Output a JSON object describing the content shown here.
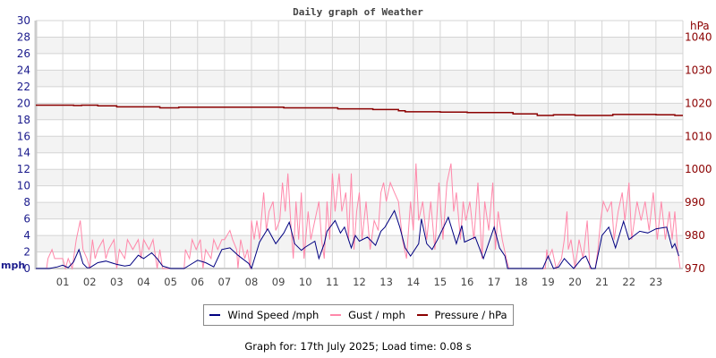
{
  "chart_data": {
    "type": "line",
    "title": "Daily graph of Weather",
    "x_unit": "hour",
    "xlim": [
      0,
      24
    ],
    "x_tick_labels": [
      "01",
      "02",
      "03",
      "04",
      "05",
      "06",
      "07",
      "08",
      "09",
      "10",
      "11",
      "12",
      "13",
      "14",
      "15",
      "16",
      "17",
      "18",
      "19",
      "20",
      "21",
      "22",
      "23"
    ],
    "left_axis": {
      "label": "mph",
      "ylim": [
        0,
        30
      ],
      "ticks": [
        0,
        2,
        4,
        6,
        8,
        10,
        12,
        14,
        16,
        18,
        20,
        22,
        24,
        26,
        28,
        30
      ]
    },
    "right_axis": {
      "label": "hPa",
      "ylim": [
        970,
        1045
      ],
      "ticks": [
        970,
        980,
        990,
        1000,
        1010,
        1020,
        1030,
        1040
      ]
    },
    "grid": true,
    "legend_position": "bottom",
    "series": [
      {
        "name": "Wind Speed /mph",
        "axis": "left",
        "color": "#000080",
        "points": [
          [
            0,
            0
          ],
          [
            0.5,
            0
          ],
          [
            0.8,
            0.2
          ],
          [
            1.0,
            0.4
          ],
          [
            1.2,
            0.1
          ],
          [
            1.4,
            0.8
          ],
          [
            1.6,
            2.3
          ],
          [
            1.75,
            0.6
          ],
          [
            1.9,
            0.1
          ],
          [
            2.0,
            0.1
          ],
          [
            2.3,
            0.7
          ],
          [
            2.6,
            0.9
          ],
          [
            3.0,
            0.5
          ],
          [
            3.3,
            0.3
          ],
          [
            3.5,
            0.4
          ],
          [
            3.8,
            1.6
          ],
          [
            4.0,
            1.2
          ],
          [
            4.3,
            1.9
          ],
          [
            4.5,
            1.2
          ],
          [
            4.7,
            0.3
          ],
          [
            5.0,
            0
          ],
          [
            5.5,
            0
          ],
          [
            5.8,
            0.6
          ],
          [
            6.0,
            1.0
          ],
          [
            6.3,
            0.7
          ],
          [
            6.6,
            0.2
          ],
          [
            6.9,
            2.3
          ],
          [
            7.2,
            2.5
          ],
          [
            7.5,
            1.6
          ],
          [
            7.9,
            0.6
          ],
          [
            8.0,
            0
          ],
          [
            8.3,
            3.2
          ],
          [
            8.6,
            4.8
          ],
          [
            8.9,
            3.0
          ],
          [
            9.2,
            4.3
          ],
          [
            9.4,
            5.6
          ],
          [
            9.6,
            3.0
          ],
          [
            9.85,
            2.2
          ],
          [
            10.0,
            2.6
          ],
          [
            10.35,
            3.3
          ],
          [
            10.5,
            1.2
          ],
          [
            10.7,
            3.0
          ],
          [
            10.8,
            4.5
          ],
          [
            11.1,
            5.8
          ],
          [
            11.3,
            4.3
          ],
          [
            11.45,
            5.0
          ],
          [
            11.6,
            3.5
          ],
          [
            11.7,
            2.5
          ],
          [
            11.85,
            4.0
          ],
          [
            12.0,
            3.3
          ],
          [
            12.3,
            3.8
          ],
          [
            12.6,
            2.8
          ],
          [
            12.8,
            4.5
          ],
          [
            12.95,
            5.0
          ],
          [
            13.3,
            7.0
          ],
          [
            13.5,
            5.0
          ],
          [
            13.7,
            2.5
          ],
          [
            13.9,
            1.5
          ],
          [
            14.2,
            3.0
          ],
          [
            14.3,
            6.0
          ],
          [
            14.5,
            3.0
          ],
          [
            14.7,
            2.3
          ],
          [
            14.9,
            3.5
          ],
          [
            15.3,
            6.2
          ],
          [
            15.6,
            3.0
          ],
          [
            15.8,
            5.2
          ],
          [
            15.9,
            3.2
          ],
          [
            16.3,
            3.8
          ],
          [
            16.6,
            1.2
          ],
          [
            17.0,
            5.0
          ],
          [
            17.2,
            2.5
          ],
          [
            17.4,
            1.5
          ],
          [
            17.5,
            0
          ],
          [
            18.8,
            0
          ],
          [
            19.0,
            1.5
          ],
          [
            19.2,
            0
          ],
          [
            19.4,
            0.2
          ],
          [
            19.6,
            1.2
          ],
          [
            19.8,
            0.5
          ],
          [
            19.95,
            0
          ],
          [
            20.25,
            1.2
          ],
          [
            20.4,
            1.5
          ],
          [
            20.6,
            0
          ],
          [
            20.75,
            0
          ],
          [
            21.0,
            4.0
          ],
          [
            21.25,
            5.0
          ],
          [
            21.5,
            2.5
          ],
          [
            21.8,
            5.7
          ],
          [
            22.0,
            3.5
          ],
          [
            22.4,
            4.5
          ],
          [
            22.7,
            4.3
          ],
          [
            23.0,
            4.8
          ],
          [
            23.4,
            5.0
          ],
          [
            23.6,
            2.5
          ],
          [
            23.7,
            3.0
          ],
          [
            23.85,
            1.5
          ]
        ]
      },
      {
        "name": "Gust / mph",
        "axis": "left",
        "color": "#ff88aa",
        "points": [
          [
            0,
            0
          ],
          [
            0.4,
            0
          ],
          [
            0.45,
            1.2
          ],
          [
            0.6,
            2.3
          ],
          [
            0.7,
            1.2
          ],
          [
            1.0,
            1.2
          ],
          [
            1.1,
            0
          ],
          [
            1.2,
            1.2
          ],
          [
            1.35,
            0
          ],
          [
            1.4,
            1.2
          ],
          [
            1.5,
            3.5
          ],
          [
            1.65,
            5.8
          ],
          [
            1.75,
            2.3
          ],
          [
            1.9,
            1.2
          ],
          [
            2.0,
            0
          ],
          [
            2.1,
            3.5
          ],
          [
            2.2,
            1.2
          ],
          [
            2.3,
            2.3
          ],
          [
            2.5,
            3.5
          ],
          [
            2.6,
            1.2
          ],
          [
            2.7,
            2.3
          ],
          [
            2.9,
            3.5
          ],
          [
            3.0,
            0
          ],
          [
            3.1,
            2.3
          ],
          [
            3.3,
            1.2
          ],
          [
            3.4,
            3.5
          ],
          [
            3.6,
            2.3
          ],
          [
            3.8,
            3.5
          ],
          [
            3.9,
            1.2
          ],
          [
            4.0,
            3.5
          ],
          [
            4.2,
            2.3
          ],
          [
            4.35,
            3.5
          ],
          [
            4.5,
            0
          ],
          [
            4.6,
            2.3
          ],
          [
            4.7,
            0
          ],
          [
            5.5,
            0
          ],
          [
            5.55,
            2.3
          ],
          [
            5.7,
            1.2
          ],
          [
            5.8,
            3.5
          ],
          [
            5.95,
            2.3
          ],
          [
            6.1,
            3.5
          ],
          [
            6.2,
            0
          ],
          [
            6.3,
            2.3
          ],
          [
            6.5,
            1.2
          ],
          [
            6.6,
            3.5
          ],
          [
            6.75,
            2.3
          ],
          [
            6.9,
            3.5
          ],
          [
            7.0,
            3.5
          ],
          [
            7.2,
            4.6
          ],
          [
            7.3,
            3.5
          ],
          [
            7.45,
            2.3
          ],
          [
            7.5,
            0
          ],
          [
            7.6,
            3.5
          ],
          [
            7.75,
            1.2
          ],
          [
            7.85,
            2.3
          ],
          [
            7.95,
            0
          ],
          [
            8.0,
            5.8
          ],
          [
            8.1,
            3.5
          ],
          [
            8.2,
            5.8
          ],
          [
            8.3,
            3.5
          ],
          [
            8.45,
            9.2
          ],
          [
            8.55,
            4.6
          ],
          [
            8.65,
            6.9
          ],
          [
            8.8,
            8.1
          ],
          [
            8.9,
            4.6
          ],
          [
            9.05,
            5.8
          ],
          [
            9.15,
            10.4
          ],
          [
            9.25,
            6.9
          ],
          [
            9.35,
            11.5
          ],
          [
            9.45,
            5.8
          ],
          [
            9.55,
            1.2
          ],
          [
            9.65,
            8.1
          ],
          [
            9.75,
            3.5
          ],
          [
            9.85,
            9.2
          ],
          [
            9.95,
            1.2
          ],
          [
            10.1,
            6.9
          ],
          [
            10.2,
            3.5
          ],
          [
            10.35,
            5.8
          ],
          [
            10.5,
            8.1
          ],
          [
            10.6,
            3.5
          ],
          [
            10.7,
            1.2
          ],
          [
            10.8,
            8.1
          ],
          [
            10.9,
            3.5
          ],
          [
            11.0,
            11.5
          ],
          [
            11.1,
            6.9
          ],
          [
            11.25,
            11.5
          ],
          [
            11.35,
            6.9
          ],
          [
            11.5,
            9.2
          ],
          [
            11.6,
            3.5
          ],
          [
            11.7,
            11.5
          ],
          [
            11.8,
            2.3
          ],
          [
            11.9,
            6.9
          ],
          [
            12.0,
            9.2
          ],
          [
            12.1,
            3.5
          ],
          [
            12.25,
            8.1
          ],
          [
            12.4,
            2.3
          ],
          [
            12.55,
            5.8
          ],
          [
            12.7,
            4.6
          ],
          [
            12.8,
            9.2
          ],
          [
            12.9,
            10.4
          ],
          [
            13.0,
            8.1
          ],
          [
            13.15,
            10.4
          ],
          [
            13.3,
            9.2
          ],
          [
            13.45,
            8.1
          ],
          [
            13.6,
            3.5
          ],
          [
            13.75,
            1.2
          ],
          [
            13.9,
            8.1
          ],
          [
            14.0,
            4.6
          ],
          [
            14.1,
            12.7
          ],
          [
            14.2,
            5.8
          ],
          [
            14.35,
            8.1
          ],
          [
            14.5,
            3.5
          ],
          [
            14.65,
            8.1
          ],
          [
            14.8,
            2.3
          ],
          [
            14.95,
            10.4
          ],
          [
            15.1,
            3.5
          ],
          [
            15.25,
            10.4
          ],
          [
            15.4,
            12.7
          ],
          [
            15.5,
            6.9
          ],
          [
            15.6,
            9.2
          ],
          [
            15.75,
            3.5
          ],
          [
            15.85,
            8.1
          ],
          [
            15.95,
            5.8
          ],
          [
            16.1,
            8.1
          ],
          [
            16.25,
            3.5
          ],
          [
            16.4,
            10.4
          ],
          [
            16.55,
            1.2
          ],
          [
            16.65,
            8.1
          ],
          [
            16.8,
            4.6
          ],
          [
            16.95,
            10.4
          ],
          [
            17.05,
            2.3
          ],
          [
            17.15,
            6.9
          ],
          [
            17.3,
            3.5
          ],
          [
            17.45,
            1.2
          ],
          [
            17.55,
            0
          ],
          [
            18.9,
            0
          ],
          [
            18.95,
            2.3
          ],
          [
            19.0,
            1.2
          ],
          [
            19.15,
            2.3
          ],
          [
            19.3,
            0
          ],
          [
            19.5,
            1.2
          ],
          [
            19.6,
            3.5
          ],
          [
            19.7,
            6.9
          ],
          [
            19.75,
            2.3
          ],
          [
            19.85,
            3.5
          ],
          [
            20.0,
            0
          ],
          [
            20.15,
            3.5
          ],
          [
            20.3,
            1.2
          ],
          [
            20.45,
            5.8
          ],
          [
            20.55,
            0
          ],
          [
            20.75,
            0
          ],
          [
            20.85,
            2.3
          ],
          [
            20.95,
            5.8
          ],
          [
            21.05,
            8.1
          ],
          [
            21.2,
            6.9
          ],
          [
            21.35,
            8.1
          ],
          [
            21.45,
            3.5
          ],
          [
            21.6,
            6.9
          ],
          [
            21.75,
            9.2
          ],
          [
            21.85,
            5.8
          ],
          [
            22.0,
            10.4
          ],
          [
            22.1,
            3.5
          ],
          [
            22.3,
            8.1
          ],
          [
            22.45,
            5.8
          ],
          [
            22.6,
            8.1
          ],
          [
            22.75,
            4.6
          ],
          [
            22.9,
            9.2
          ],
          [
            23.05,
            3.5
          ],
          [
            23.2,
            8.1
          ],
          [
            23.35,
            3.5
          ],
          [
            23.5,
            6.9
          ],
          [
            23.6,
            3.5
          ],
          [
            23.7,
            6.9
          ],
          [
            23.8,
            2.3
          ],
          [
            23.9,
            0
          ]
        ]
      },
      {
        "name": "Pressure / hPa",
        "axis": "right",
        "color": "#8b0000",
        "points": [
          [
            0,
            1019.4
          ],
          [
            1.2,
            1019.4
          ],
          [
            1.4,
            1019.3
          ],
          [
            1.7,
            1019.4
          ],
          [
            2.3,
            1019.2
          ],
          [
            3.0,
            1018.9
          ],
          [
            4.5,
            1018.9
          ],
          [
            4.6,
            1018.6
          ],
          [
            5.2,
            1018.6
          ],
          [
            5.3,
            1018.8
          ],
          [
            7.5,
            1018.8
          ],
          [
            8.8,
            1018.8
          ],
          [
            9.2,
            1018.6
          ],
          [
            10.0,
            1018.6
          ],
          [
            11.2,
            1018.3
          ],
          [
            12.5,
            1018.1
          ],
          [
            13.45,
            1017.7
          ],
          [
            13.7,
            1017.4
          ],
          [
            15.0,
            1017.3
          ],
          [
            16.0,
            1017.2
          ],
          [
            17.7,
            1016.8
          ],
          [
            18.6,
            1016.3
          ],
          [
            19.2,
            1016.5
          ],
          [
            20.0,
            1016.3
          ],
          [
            21.4,
            1016.6
          ],
          [
            23.0,
            1016.5
          ],
          [
            23.7,
            1016.3
          ],
          [
            24,
            1016.3
          ]
        ]
      }
    ]
  },
  "legend": {
    "items": [
      "Wind Speed /mph",
      "Gust / mph",
      "Pressure / hPa"
    ]
  },
  "footer": "Graph for: 17th July 2025; Load time: 0.08 s",
  "colors": {
    "wind": "#000080",
    "gust": "#ff88aa",
    "pressure": "#8b0000",
    "band": "#f3f3f3",
    "grid": "#d4d4d4"
  }
}
